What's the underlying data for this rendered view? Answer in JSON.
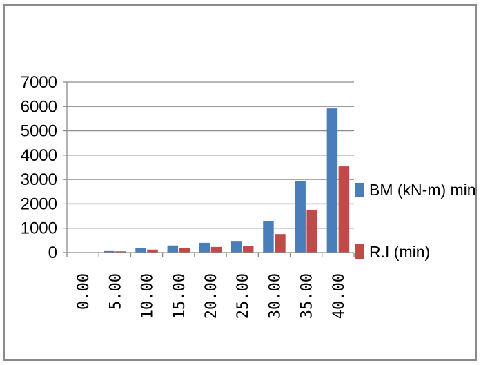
{
  "chart_data": {
    "type": "bar",
    "title": "",
    "xlabel": "",
    "ylabel": "",
    "categories": [
      "0.00",
      "5.00",
      "10.00",
      "15.00",
      "20.00",
      "25.00",
      "30.00",
      "35.00",
      "40.00"
    ],
    "y_ticks": [
      "0",
      "1000",
      "2000",
      "3000",
      "4000",
      "5000",
      "6000",
      "7000"
    ],
    "ylim": [
      0,
      7000
    ],
    "grid": true,
    "legend_position": "right",
    "series": [
      {
        "name": "BM (kN-m) min",
        "color": "#4a7ebb",
        "values": [
          0,
          60,
          180,
          290,
          400,
          450,
          1300,
          2930,
          5920
        ]
      },
      {
        "name": "R.I (min)",
        "color": "#be4b48",
        "values": [
          0,
          50,
          120,
          170,
          230,
          280,
          760,
          1760,
          3540
        ]
      }
    ]
  }
}
